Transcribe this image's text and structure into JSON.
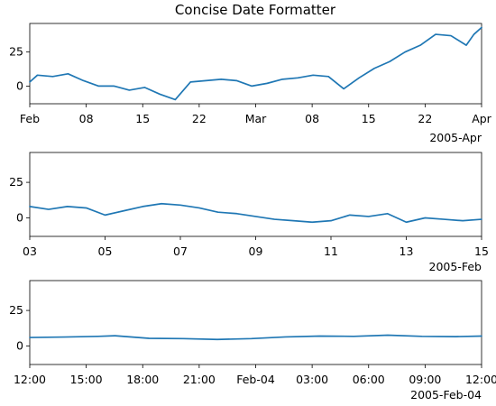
{
  "chart_data": {
    "type": "line",
    "title": "Concise Date Formatter",
    "series_color": "#1f77b4",
    "grid": false,
    "panels": [
      {
        "name": "top",
        "xlim": [
          "2005-02-01",
          "2005-04-01"
        ],
        "ylim": [
          -13,
          46
        ],
        "yticks": [
          0,
          25
        ],
        "xtick_labels": [
          "Feb",
          "08",
          "15",
          "22",
          "Mar",
          "08",
          "15",
          "22",
          "Apr"
        ],
        "offset_label": "2005-Apr",
        "series": {
          "x": [
            "2005-02-01",
            "2005-02-02",
            "2005-02-04",
            "2005-02-06",
            "2005-02-08",
            "2005-02-10",
            "2005-02-12",
            "2005-02-14",
            "2005-02-16",
            "2005-02-18",
            "2005-02-20",
            "2005-02-22",
            "2005-02-24",
            "2005-02-26",
            "2005-02-28",
            "2005-03-02",
            "2005-03-04",
            "2005-03-06",
            "2005-03-08",
            "2005-03-10",
            "2005-03-12",
            "2005-03-14",
            "2005-03-16",
            "2005-03-18",
            "2005-03-20",
            "2005-03-22",
            "2005-03-24",
            "2005-03-26",
            "2005-03-28",
            "2005-03-30",
            "2005-03-31",
            "2005-04-01"
          ],
          "y": [
            3,
            8,
            7,
            9,
            4,
            0,
            0,
            -3,
            -1,
            -6,
            -10,
            3,
            4,
            5,
            4,
            0,
            2,
            5,
            6,
            8,
            7,
            -2,
            6,
            13,
            18,
            25,
            30,
            38,
            37,
            30,
            38,
            43
          ]
        }
      },
      {
        "name": "middle",
        "xlim": [
          "2005-02-03",
          "2005-02-15"
        ],
        "ylim": [
          -13,
          46
        ],
        "yticks": [
          0,
          25
        ],
        "xtick_labels": [
          "03",
          "05",
          "07",
          "09",
          "11",
          "13",
          "15"
        ],
        "offset_label": "2005-Feb",
        "series": {
          "x": [
            "2005-02-03",
            "2005-02-03T12:00",
            "2005-02-04",
            "2005-02-04T12:00",
            "2005-02-05",
            "2005-02-05T12:00",
            "2005-02-06",
            "2005-02-06T12:00",
            "2005-02-07",
            "2005-02-07T12:00",
            "2005-02-08",
            "2005-02-08T12:00",
            "2005-02-09",
            "2005-02-09T12:00",
            "2005-02-10",
            "2005-02-10T12:00",
            "2005-02-11",
            "2005-02-11T12:00",
            "2005-02-12",
            "2005-02-12T12:00",
            "2005-02-13",
            "2005-02-13T12:00",
            "2005-02-14",
            "2005-02-14T12:00",
            "2005-02-15"
          ],
          "y": [
            8,
            6,
            8,
            7,
            2,
            5,
            8,
            10,
            9,
            7,
            4,
            3,
            1,
            -1,
            -2,
            -3,
            -2,
            2,
            1,
            3,
            -3,
            0,
            -1,
            -2,
            -1
          ]
        }
      },
      {
        "name": "bottom",
        "xlim": [
          "2005-02-03T11:00",
          "2005-02-04T13:30"
        ],
        "ylim": [
          -13,
          46
        ],
        "yticks": [
          0,
          25
        ],
        "xtick_labels": [
          "12:00",
          "15:00",
          "18:00",
          "21:00",
          "Feb-04",
          "03:00",
          "06:00",
          "09:00",
          "12:00"
        ],
        "offset_label": "2005-Feb-04",
        "series": {
          "x": [
            "2005-02-03T11:00",
            "2005-02-03T13:00",
            "2005-02-03T15:00",
            "2005-02-03T16:00",
            "2005-02-03T18:00",
            "2005-02-03T20:00",
            "2005-02-03T22:00",
            "2005-02-04T00:00",
            "2005-02-04T02:00",
            "2005-02-04T04:00",
            "2005-02-04T06:00",
            "2005-02-04T08:00",
            "2005-02-04T10:00",
            "2005-02-04T12:00",
            "2005-02-04T13:30"
          ],
          "y": [
            6,
            6.3,
            6.8,
            7.2,
            5.4,
            5.2,
            4.6,
            5.2,
            6.4,
            7.0,
            6.8,
            7.6,
            6.8,
            6.6,
            7.0
          ]
        }
      }
    ]
  }
}
